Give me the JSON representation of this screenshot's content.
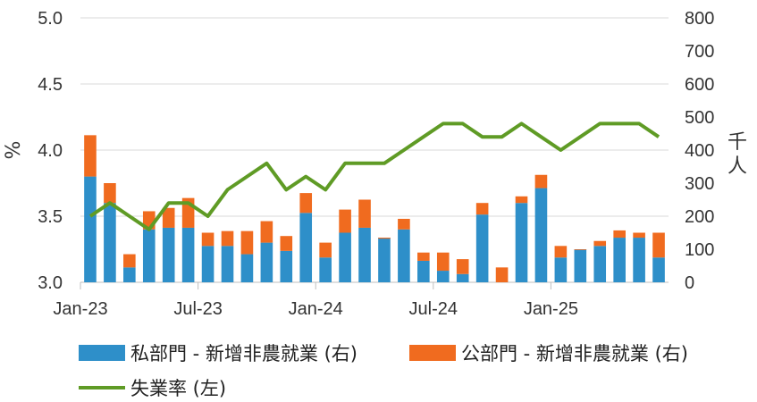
{
  "chart_data": {
    "type": "bar",
    "subtype": "stacked-bar-with-line",
    "title": "",
    "categories": [
      "Jan-23",
      "Feb-23",
      "Mar-23",
      "Apr-23",
      "May-23",
      "Jun-23",
      "Jul-23",
      "Aug-23",
      "Sep-23",
      "Oct-23",
      "Nov-23",
      "Dec-23",
      "Jan-24",
      "Feb-24",
      "Mar-24",
      "Apr-24",
      "May-24",
      "Jun-24",
      "Jul-24",
      "Aug-24",
      "Sep-24",
      "Oct-24",
      "Nov-24",
      "Dec-24",
      "Jan-25",
      "Feb-25",
      "Mar-25",
      "Apr-25",
      "May-25",
      "Jun-25"
    ],
    "x_tick_labels": [
      "Jan-23",
      "Jul-23",
      "Jan-24",
      "Jul-24",
      "Jan-25"
    ],
    "x_tick_indices": [
      0,
      6,
      12,
      18,
      24
    ],
    "left_axis": {
      "label": "%",
      "ylim": [
        3.0,
        5.0
      ],
      "ticks": [
        "3.0",
        "3.5",
        "4.0",
        "4.5",
        "5.0"
      ]
    },
    "right_axis": {
      "label": "千人",
      "ylim": [
        0,
        800
      ],
      "ticks": [
        "0",
        "100",
        "200",
        "300",
        "400",
        "500",
        "600",
        "700",
        "800"
      ]
    },
    "series": [
      {
        "name": "私部門 - 新增非農就業 (右)",
        "kind": "bar",
        "axis": "right",
        "color": "#2e8fc9",
        "values": [
          320,
          240,
          45,
          160,
          165,
          165,
          110,
          110,
          85,
          120,
          95,
          210,
          75,
          150,
          165,
          135,
          160,
          65,
          35,
          25,
          205,
          0,
          240,
          285,
          75,
          100,
          110,
          135,
          135,
          75
        ]
      },
      {
        "name": "公部門 - 新增非農就業 (右)",
        "kind": "bar",
        "axis": "right",
        "color": "#f06b1f",
        "values": [
          125,
          60,
          40,
          55,
          60,
          90,
          40,
          45,
          70,
          65,
          45,
          60,
          45,
          70,
          85,
          -3,
          32,
          25,
          55,
          45,
          35,
          45,
          20,
          40,
          35,
          -2,
          15,
          22,
          15,
          75
        ]
      },
      {
        "name": "失業率 (左)",
        "kind": "line",
        "axis": "left",
        "color": "#5f9b25",
        "values": [
          3.5,
          3.6,
          3.5,
          3.4,
          3.6,
          3.6,
          3.5,
          3.7,
          3.8,
          3.9,
          3.7,
          3.8,
          3.7,
          3.9,
          3.9,
          3.9,
          4.0,
          4.1,
          4.2,
          4.2,
          4.1,
          4.1,
          4.2,
          4.1,
          4.0,
          4.1,
          4.2,
          4.2,
          4.2,
          4.1
        ]
      }
    ],
    "grid": "horizontal",
    "legend": "bottom"
  }
}
